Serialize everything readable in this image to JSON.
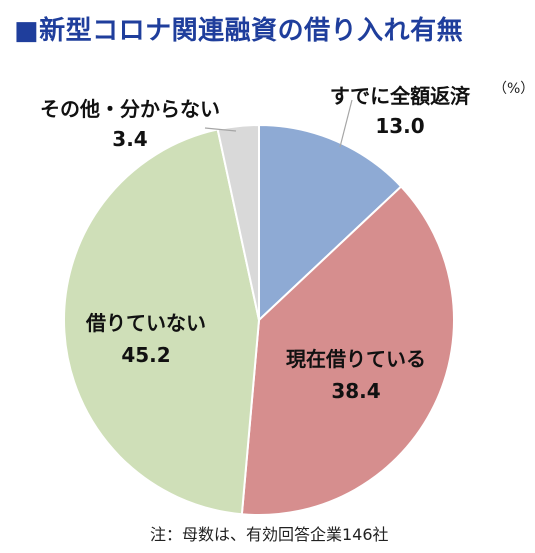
{
  "title": "■新型コロナ関連融資の借り入れ有無",
  "unit_label": "（%）",
  "note": "注：母数は、有効回答企業146社",
  "colors": {
    "title": "#1f3e9c",
    "repaid": "#8eaad4",
    "borrowing": "#d68e8e",
    "not_borrowing": "#cfdfb8",
    "other": "#d9d9d9"
  },
  "chart_data": {
    "type": "pie",
    "title": "新型コロナ関連融資の借り入れ有無",
    "unit": "%",
    "slices": [
      {
        "label": "すでに全額返済",
        "value": 13.0,
        "value_label": "13.0",
        "color": "#8eaad4"
      },
      {
        "label": "現在借りている",
        "value": 38.4,
        "value_label": "38.4",
        "color": "#d68e8e"
      },
      {
        "label": "借りていない",
        "value": 45.2,
        "value_label": "45.2",
        "color": "#cfdfb8"
      },
      {
        "label": "その他・分からない",
        "value": 3.4,
        "value_label": "3.4",
        "color": "#d9d9d9"
      }
    ]
  }
}
